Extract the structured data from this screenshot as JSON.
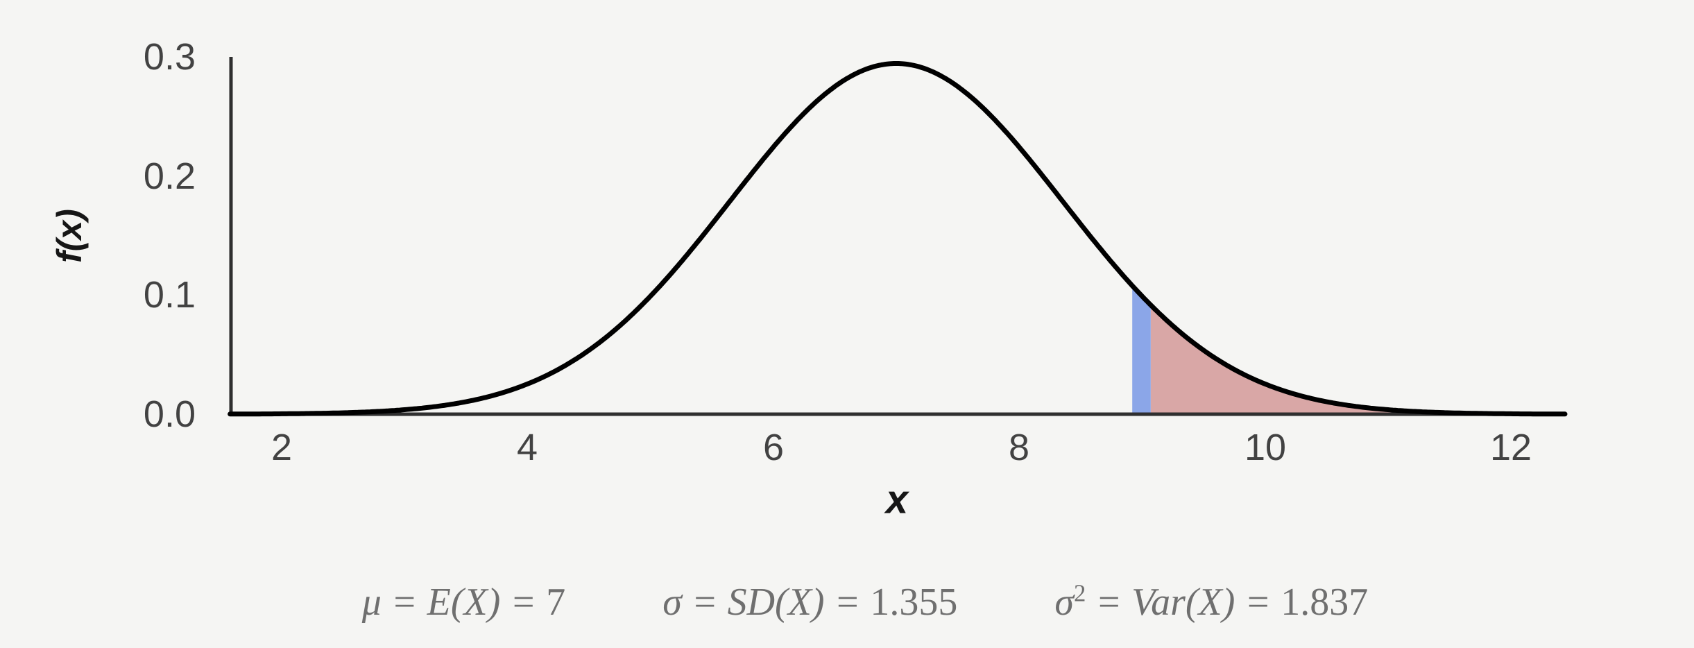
{
  "figure": {
    "background_color": "#f5f5f3",
    "axis_color": "#2f2f2f",
    "tick_label_color": "#424242"
  },
  "chart_data": {
    "type": "area",
    "title": "",
    "xlabel": "x",
    "ylabel": "f(x)",
    "x_ticks": [
      2,
      4,
      6,
      8,
      10,
      12
    ],
    "y_tick_labels": [
      "0.0",
      "0.1",
      "0.2",
      "0.3"
    ],
    "xlim": [
      1.58,
      12.44
    ],
    "ylim": [
      0,
      0.3
    ],
    "grid": false,
    "legend": null,
    "curve": {
      "distribution": "normal",
      "mu": 7,
      "sigma": 1.355,
      "variance": 1.837,
      "peak_density": 0.294,
      "x_range": [
        1.58,
        12.44
      ],
      "color": "#000000"
    },
    "highlight_bar": {
      "label": "density strip at x = 9",
      "x_from": 8.92,
      "x_to": 9.07,
      "color": "#8ba6e8"
    },
    "shaded_tail": {
      "label": "right tail region P(X > 9)",
      "x_from": 9.07,
      "x_to": 12.44,
      "color": "#d9a7a6"
    }
  },
  "stats_line": {
    "color": "#6f6f6f",
    "stats": [
      {
        "symbol": "μ",
        "sup": "",
        "relation": " = E(X) = ",
        "value": "7"
      },
      {
        "symbol": "σ",
        "sup": "",
        "relation": " = SD(X) = ",
        "value": "1.355"
      },
      {
        "symbol": "σ",
        "sup": "2",
        "relation": " = Var(X) = ",
        "value": "1.837"
      }
    ]
  }
}
